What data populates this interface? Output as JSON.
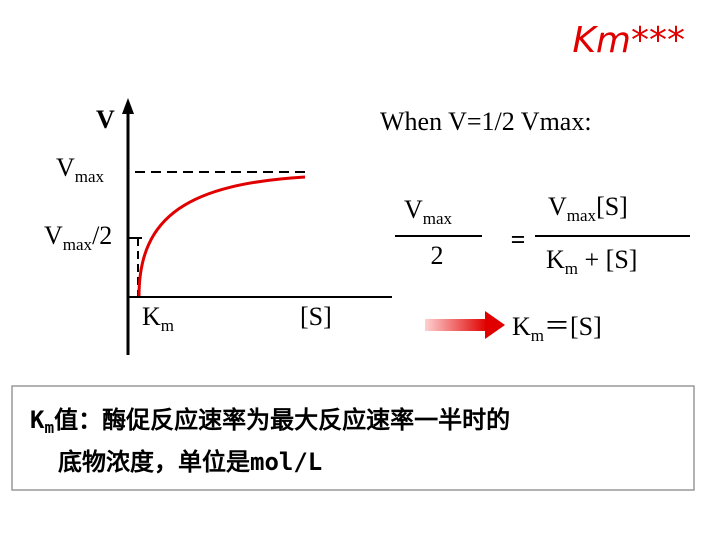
{
  "title": "Km***",
  "graph": {
    "y_axis_label": "V",
    "vmax": {
      "base": "V",
      "sub": "max"
    },
    "half_vmax": {
      "base": "V",
      "sub": "max",
      "suffix": "/2"
    },
    "km": {
      "base": "K",
      "sub": "m"
    },
    "x_axis_label": "[S]"
  },
  "equation": {
    "condition": "When V=1/2 Vmax:",
    "lhs_num": {
      "base": "V",
      "sub": "max"
    },
    "lhs_den": "2",
    "equals": "=",
    "rhs_num": {
      "base": "V",
      "sub": "max",
      "suffix": "[S]"
    },
    "rhs_den": {
      "base": "K",
      "sub": "m",
      "suffix": " + [S]"
    }
  },
  "result": {
    "base": "K",
    "sub": "m",
    "rest": "＝[S]"
  },
  "definition": {
    "term": {
      "base": "K",
      "sub": "m"
    },
    "line1": "值：酶促反应速率为最大反应速率一半时的",
    "line2": "底物浓度，单位是mol/L"
  }
}
